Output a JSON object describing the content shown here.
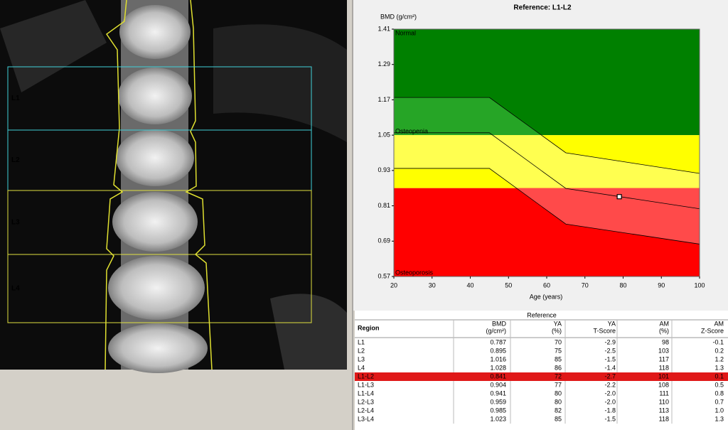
{
  "scan": {
    "regions": [
      {
        "label": "L1",
        "color": "#40d0d8"
      },
      {
        "label": "L2",
        "color": "#40d0d8"
      },
      {
        "label": "L3",
        "color": "#e0e040"
      },
      {
        "label": "L4",
        "color": "#e0e040"
      }
    ]
  },
  "chart_data": {
    "type": "line",
    "title": "Reference: L1-L2",
    "y_label": "BMD (g/cm²)",
    "x_label": "Age (years)",
    "xlim": [
      20,
      100
    ],
    "xticks": [
      20,
      30,
      40,
      50,
      60,
      70,
      80,
      90,
      100
    ],
    "ylim": [
      0.57,
      1.41
    ],
    "yticks": [
      0.57,
      0.69,
      0.81,
      0.93,
      1.05,
      1.17,
      1.29,
      1.41
    ],
    "zones": [
      {
        "label": "Normal",
        "color": "#008000",
        "band_color": "#26a526",
        "ylim": [
          1.05,
          1.41
        ]
      },
      {
        "label": "Osteopenia",
        "color": "#ffff00",
        "band_color": "#ffff50",
        "ylim": [
          0.87,
          1.05
        ]
      },
      {
        "label": "Osteoporosis",
        "color": "#ff0000",
        "band_color": "#ff4a4a",
        "ylim": [
          0.57,
          0.87
        ]
      }
    ],
    "x": [
      20,
      45,
      65,
      100
    ],
    "lines": [
      {
        "values": [
          1.178,
          1.178,
          0.99,
          0.92
        ]
      },
      {
        "values": [
          1.058,
          1.058,
          0.869,
          0.8
        ]
      },
      {
        "values": [
          0.937,
          0.937,
          0.748,
          0.68
        ]
      }
    ],
    "line_color": "#000000",
    "patient": {
      "x": 79,
      "y": 0.841
    }
  },
  "table": {
    "group_header": "Reference",
    "columns": [
      [
        "Region"
      ],
      [
        "BMD",
        "(g/cm²)"
      ],
      [
        "YA",
        "(%)"
      ],
      [
        "YA",
        "T-Score"
      ],
      [
        "AM",
        "(%)"
      ],
      [
        "AM",
        "Z-Score"
      ]
    ],
    "rows": [
      [
        "L1",
        "0.787",
        "70",
        "-2.9",
        "98",
        "-0.1"
      ],
      [
        "L2",
        "0.895",
        "75",
        "-2.5",
        "103",
        "0.2"
      ],
      [
        "L3",
        "1.016",
        "85",
        "-1.5",
        "117",
        "1.2"
      ],
      [
        "L4",
        "1.028",
        "86",
        "-1.4",
        "118",
        "1.3"
      ],
      [
        "L1-L2",
        "0.841",
        "72",
        "-2.7",
        "101",
        "0.1"
      ],
      [
        "L1-L3",
        "0.904",
        "77",
        "-2.2",
        "108",
        "0.5"
      ],
      [
        "L1-L4",
        "0.941",
        "80",
        "-2.0",
        "111",
        "0.8"
      ],
      [
        "L2-L3",
        "0.959",
        "80",
        "-2.0",
        "110",
        "0.7"
      ],
      [
        "L2-L4",
        "0.985",
        "82",
        "-1.8",
        "113",
        "1.0"
      ],
      [
        "L3-L4",
        "1.023",
        "85",
        "-1.5",
        "118",
        "1.3"
      ]
    ],
    "highlight_row": 4,
    "highlight_color": "#e01818"
  }
}
